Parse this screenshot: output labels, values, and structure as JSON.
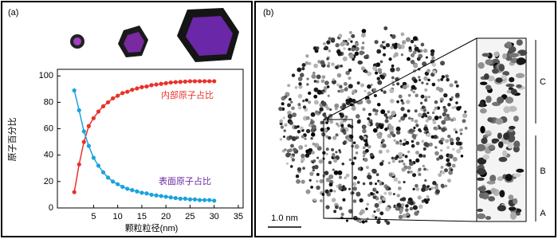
{
  "panel_labels": [
    "(a)",
    "(b)"
  ],
  "image_labels": {
    "scale_bar": "1.0 nm",
    "zones": [
      "A",
      "B",
      "C"
    ]
  },
  "chart_data": {
    "type": "line",
    "x_label": "颗粒粒径(nm)",
    "y_label": "原子百分比",
    "x": [
      1,
      2,
      3,
      4,
      5,
      6,
      7,
      8,
      9,
      10,
      11,
      12,
      13,
      14,
      15,
      16,
      17,
      18,
      19,
      20,
      21,
      22,
      23,
      24,
      25,
      26,
      27,
      28,
      29,
      30
    ],
    "series": [
      {
        "name": "内部原子占比",
        "color": "#e8322a",
        "values": [
          12,
          33,
          50,
          62,
          68,
          73,
          77,
          80,
          83,
          85,
          87,
          88,
          89.5,
          90.5,
          91.5,
          92,
          93,
          93.5,
          94,
          94.5,
          95,
          95.3,
          95.5,
          95.7,
          96,
          96,
          96,
          96,
          96,
          96
        ]
      },
      {
        "name": "表面原子占比",
        "color": "#1aa3dc",
        "values": [
          89,
          74,
          58,
          47,
          38,
          32,
          27,
          23,
          20,
          18,
          16,
          14.5,
          13.5,
          12.5,
          11.5,
          11,
          10,
          9.5,
          9,
          8.5,
          8,
          7.5,
          7,
          7,
          6.5,
          6.5,
          6,
          6,
          6,
          5.5
        ]
      }
    ],
    "xlim": [
      -2.5,
      36
    ],
    "xticks": [
      5,
      10,
      15,
      20,
      25,
      30,
      35
    ],
    "ylim": [
      0,
      105
    ],
    "yticks": [
      0,
      20,
      40,
      60,
      80,
      100
    ]
  }
}
